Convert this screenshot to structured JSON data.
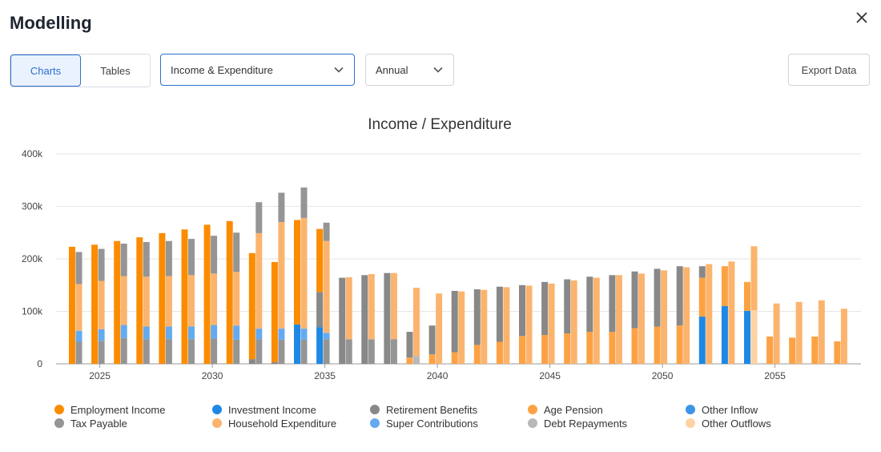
{
  "header": {
    "title": "Modelling",
    "close_icon": "close-icon"
  },
  "toolbar": {
    "tabs": [
      {
        "label": "Charts",
        "active": true
      },
      {
        "label": "Tables",
        "active": false
      }
    ],
    "view_select": "Income & Expenditure",
    "period_select": "Annual",
    "export_label": "Export Data"
  },
  "colors": {
    "employment_income": "#fb8c00",
    "investment_income": "#1e88e5",
    "retirement_benefits": "#888888",
    "age_pension": "#fca244",
    "other_inflow": "#3d95e8",
    "tax_payable": "#959595",
    "household_expenditure": "#fbb46e",
    "super_contributions": "#64aaf0",
    "debt_repayments": "#b8b8b8",
    "other_outflows": "#fdd3a3"
  },
  "chart_data": {
    "type": "bar",
    "title": "Income / Expenditure",
    "xlabel": "",
    "ylabel": "",
    "ylim": [
      0,
      400000
    ],
    "y_ticks": [
      0,
      100000,
      200000,
      300000,
      400000
    ],
    "y_tick_labels": [
      "0",
      "100k",
      "200k",
      "300k",
      "400k"
    ],
    "x_tick_labels": [
      "2025",
      "2030",
      "2035",
      "2040",
      "2045",
      "2050",
      "2055"
    ],
    "x_tick_years": [
      2025,
      2030,
      2035,
      2040,
      2045,
      2050,
      2055
    ],
    "grid": true,
    "legend_position": "bottom",
    "stacked": true,
    "legend": [
      {
        "key": "employment_income",
        "name": "Employment Income"
      },
      {
        "key": "investment_income",
        "name": "Investment Income"
      },
      {
        "key": "retirement_benefits",
        "name": "Retirement Benefits"
      },
      {
        "key": "age_pension",
        "name": "Age Pension"
      },
      {
        "key": "other_inflow",
        "name": "Other Inflow"
      },
      {
        "key": "tax_payable",
        "name": "Tax Payable"
      },
      {
        "key": "household_expenditure",
        "name": "Household Expenditure"
      },
      {
        "key": "super_contributions",
        "name": "Super Contributions"
      },
      {
        "key": "debt_repayments",
        "name": "Debt Repayments"
      },
      {
        "key": "other_outflows",
        "name": "Other Outflows"
      }
    ],
    "years": [
      2024,
      2025,
      2026,
      2027,
      2028,
      2029,
      2030,
      2031,
      2032,
      2033,
      2034,
      2035,
      2036,
      2037,
      2038,
      2039,
      2040,
      2041,
      2042,
      2043,
      2044,
      2045,
      2046,
      2047,
      2048,
      2049,
      2050,
      2051,
      2052,
      2053,
      2054,
      2055,
      2056,
      2057,
      2058
    ],
    "income": [
      [
        {
          "k": "employment_income",
          "v": 223000
        }
      ],
      [
        {
          "k": "employment_income",
          "v": 227000
        }
      ],
      [
        {
          "k": "employment_income",
          "v": 234000
        }
      ],
      [
        {
          "k": "employment_income",
          "v": 241000
        }
      ],
      [
        {
          "k": "employment_income",
          "v": 249000
        }
      ],
      [
        {
          "k": "employment_income",
          "v": 256000
        }
      ],
      [
        {
          "k": "employment_income",
          "v": 265000
        }
      ],
      [
        {
          "k": "employment_income",
          "v": 272000
        }
      ],
      [
        {
          "k": "retirement_benefits",
          "v": 9000
        },
        {
          "k": "employment_income",
          "v": 202000
        }
      ],
      [
        {
          "k": "retirement_benefits",
          "v": 3000
        },
        {
          "k": "employment_income",
          "v": 191000
        }
      ],
      [
        {
          "k": "investment_income",
          "v": 75000
        },
        {
          "k": "employment_income",
          "v": 199000
        }
      ],
      [
        {
          "k": "investment_income",
          "v": 70000
        },
        {
          "k": "retirement_benefits",
          "v": 67000
        },
        {
          "k": "employment_income",
          "v": 120000
        }
      ],
      [
        {
          "k": "retirement_benefits",
          "v": 164000
        }
      ],
      [
        {
          "k": "retirement_benefits",
          "v": 169000
        }
      ],
      [
        {
          "k": "retirement_benefits",
          "v": 173000
        }
      ],
      [
        {
          "k": "age_pension",
          "v": 12000
        },
        {
          "k": "retirement_benefits",
          "v": 49000
        }
      ],
      [
        {
          "k": "age_pension",
          "v": 18000
        },
        {
          "k": "retirement_benefits",
          "v": 55000
        }
      ],
      [
        {
          "k": "age_pension",
          "v": 22000
        },
        {
          "k": "retirement_benefits",
          "v": 117000
        }
      ],
      [
        {
          "k": "age_pension",
          "v": 36000
        },
        {
          "k": "retirement_benefits",
          "v": 106000
        }
      ],
      [
        {
          "k": "age_pension",
          "v": 42000
        },
        {
          "k": "retirement_benefits",
          "v": 105000
        }
      ],
      [
        {
          "k": "age_pension",
          "v": 53000
        },
        {
          "k": "retirement_benefits",
          "v": 97000
        }
      ],
      [
        {
          "k": "age_pension",
          "v": 55000
        },
        {
          "k": "retirement_benefits",
          "v": 101000
        }
      ],
      [
        {
          "k": "age_pension",
          "v": 58000
        },
        {
          "k": "retirement_benefits",
          "v": 103000
        }
      ],
      [
        {
          "k": "age_pension",
          "v": 61000
        },
        {
          "k": "retirement_benefits",
          "v": 105000
        }
      ],
      [
        {
          "k": "age_pension",
          "v": 61000
        },
        {
          "k": "retirement_benefits",
          "v": 108000
        }
      ],
      [
        {
          "k": "age_pension",
          "v": 68000
        },
        {
          "k": "retirement_benefits",
          "v": 108000
        }
      ],
      [
        {
          "k": "age_pension",
          "v": 71000
        },
        {
          "k": "retirement_benefits",
          "v": 110000
        }
      ],
      [
        {
          "k": "age_pension",
          "v": 73000
        },
        {
          "k": "retirement_benefits",
          "v": 113000
        }
      ],
      [
        {
          "k": "investment_income",
          "v": 90000
        },
        {
          "k": "age_pension",
          "v": 74000
        },
        {
          "k": "retirement_benefits",
          "v": 22000
        }
      ],
      [
        {
          "k": "investment_income",
          "v": 110000
        },
        {
          "k": "age_pension",
          "v": 76000
        }
      ],
      [
        {
          "k": "investment_income",
          "v": 101000
        },
        {
          "k": "age_pension",
          "v": 55000
        }
      ],
      [
        {
          "k": "age_pension",
          "v": 52000
        }
      ],
      [
        {
          "k": "age_pension",
          "v": 50000
        }
      ],
      [
        {
          "k": "age_pension",
          "v": 52000
        }
      ],
      [
        {
          "k": "age_pension",
          "v": 43000
        }
      ]
    ],
    "expenditure": [
      [
        {
          "k": "tax_payable",
          "v": 42000
        },
        {
          "k": "super_contributions",
          "v": 21000
        },
        {
          "k": "household_expenditure",
          "v": 89000
        },
        {
          "k": "tax_payable",
          "v": 61000
        }
      ],
      [
        {
          "k": "tax_payable",
          "v": 44000
        },
        {
          "k": "super_contributions",
          "v": 22000
        },
        {
          "k": "household_expenditure",
          "v": 92000
        },
        {
          "k": "tax_payable",
          "v": 61000
        }
      ],
      [
        {
          "k": "tax_payable",
          "v": 49000
        },
        {
          "k": "super_contributions",
          "v": 25000
        },
        {
          "k": "household_expenditure",
          "v": 93000
        },
        {
          "k": "tax_payable",
          "v": 62000
        }
      ],
      [
        {
          "k": "tax_payable",
          "v": 47000
        },
        {
          "k": "super_contributions",
          "v": 24000
        },
        {
          "k": "household_expenditure",
          "v": 95000
        },
        {
          "k": "tax_payable",
          "v": 66000
        }
      ],
      [
        {
          "k": "tax_payable",
          "v": 47000
        },
        {
          "k": "super_contributions",
          "v": 24000
        },
        {
          "k": "household_expenditure",
          "v": 96000
        },
        {
          "k": "tax_payable",
          "v": 67000
        }
      ],
      [
        {
          "k": "tax_payable",
          "v": 47000
        },
        {
          "k": "super_contributions",
          "v": 24000
        },
        {
          "k": "household_expenditure",
          "v": 98000
        },
        {
          "k": "tax_payable",
          "v": 69000
        }
      ],
      [
        {
          "k": "tax_payable",
          "v": 48000
        },
        {
          "k": "super_contributions",
          "v": 26000
        },
        {
          "k": "household_expenditure",
          "v": 98000
        },
        {
          "k": "tax_payable",
          "v": 72000
        }
      ],
      [
        {
          "k": "tax_payable",
          "v": 46000
        },
        {
          "k": "super_contributions",
          "v": 27000
        },
        {
          "k": "household_expenditure",
          "v": 102000
        },
        {
          "k": "tax_payable",
          "v": 75000
        }
      ],
      [
        {
          "k": "tax_payable",
          "v": 47000
        },
        {
          "k": "super_contributions",
          "v": 20000
        },
        {
          "k": "household_expenditure",
          "v": 182000
        },
        {
          "k": "tax_payable",
          "v": 59000
        }
      ],
      [
        {
          "k": "tax_payable",
          "v": 46000
        },
        {
          "k": "super_contributions",
          "v": 21000
        },
        {
          "k": "household_expenditure",
          "v": 203000
        },
        {
          "k": "tax_payable",
          "v": 56000
        }
      ],
      [
        {
          "k": "tax_payable",
          "v": 46000
        },
        {
          "k": "super_contributions",
          "v": 21000
        },
        {
          "k": "household_expenditure",
          "v": 211000
        },
        {
          "k": "tax_payable",
          "v": 58000
        }
      ],
      [
        {
          "k": "tax_payable",
          "v": 47000
        },
        {
          "k": "super_contributions",
          "v": 12000
        },
        {
          "k": "household_expenditure",
          "v": 175000
        },
        {
          "k": "tax_payable",
          "v": 35000
        }
      ],
      [
        {
          "k": "tax_payable",
          "v": 47000
        },
        {
          "k": "household_expenditure",
          "v": 118000
        }
      ],
      [
        {
          "k": "tax_payable",
          "v": 47000
        },
        {
          "k": "household_expenditure",
          "v": 124000
        }
      ],
      [
        {
          "k": "tax_payable",
          "v": 47000
        },
        {
          "k": "household_expenditure",
          "v": 126000
        }
      ],
      [
        {
          "k": "debt_repayments",
          "v": 15000
        },
        {
          "k": "household_expenditure",
          "v": 130000
        }
      ],
      [
        {
          "k": "household_expenditure",
          "v": 134000
        }
      ],
      [
        {
          "k": "household_expenditure",
          "v": 138000
        }
      ],
      [
        {
          "k": "household_expenditure",
          "v": 141000
        }
      ],
      [
        {
          "k": "household_expenditure",
          "v": 146000
        }
      ],
      [
        {
          "k": "household_expenditure",
          "v": 149000
        }
      ],
      [
        {
          "k": "household_expenditure",
          "v": 153000
        }
      ],
      [
        {
          "k": "household_expenditure",
          "v": 159000
        }
      ],
      [
        {
          "k": "household_expenditure",
          "v": 164000
        }
      ],
      [
        {
          "k": "household_expenditure",
          "v": 169000
        }
      ],
      [
        {
          "k": "household_expenditure",
          "v": 172000
        }
      ],
      [
        {
          "k": "household_expenditure",
          "v": 178000
        }
      ],
      [
        {
          "k": "household_expenditure",
          "v": 184000
        }
      ],
      [
        {
          "k": "household_expenditure",
          "v": 190000
        }
      ],
      [
        {
          "k": "household_expenditure",
          "v": 195000
        }
      ],
      [
        {
          "k": "other_outflows",
          "v": 102000
        },
        {
          "k": "household_expenditure",
          "v": 122000
        }
      ],
      [
        {
          "k": "household_expenditure",
          "v": 115000
        }
      ],
      [
        {
          "k": "household_expenditure",
          "v": 118000
        }
      ],
      [
        {
          "k": "household_expenditure",
          "v": 121000
        }
      ],
      [
        {
          "k": "household_expenditure",
          "v": 105000
        }
      ]
    ]
  }
}
